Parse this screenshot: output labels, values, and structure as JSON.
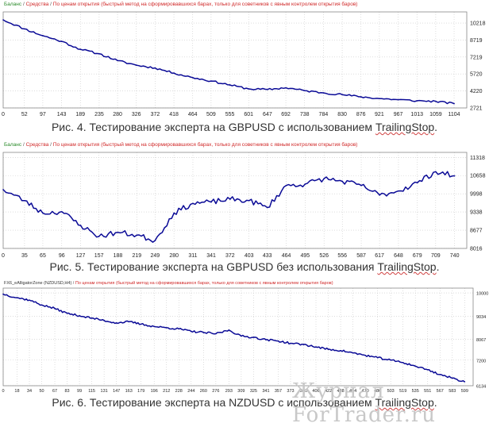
{
  "chart_data": [
    {
      "type": "line",
      "header": {
        "balance": "Баланс",
        "sep1": " / ",
        "equity": "Средства",
        "sep2": " / ",
        "mode": "По ценам открытия (быстрый метод на сформировавшихся барах, только для советников с явным контролем открытия баров)"
      },
      "x": [
        0,
        52,
        97,
        143,
        189,
        235,
        280,
        326,
        372,
        418,
        464,
        509,
        555,
        601,
        647,
        692,
        738,
        784,
        830,
        876,
        921,
        967,
        1013,
        1059,
        1104
      ],
      "xlim": [
        0,
        1135
      ],
      "ylim": [
        2721,
        11200
      ],
      "yticks": [
        2721,
        4220,
        5720,
        7219,
        8719,
        10218
      ],
      "xticks": [
        "0",
        "52",
        "97",
        "143",
        "189",
        "235",
        "280",
        "326",
        "372",
        "418",
        "464",
        "509",
        "555",
        "601",
        "647",
        "692",
        "738",
        "784",
        "830",
        "876",
        "921",
        "967",
        "1013",
        "1059",
        "1104"
      ],
      "series": [
        {
          "values": [
            10500,
            9700,
            9100,
            8600,
            7900,
            7500,
            6900,
            6500,
            6250,
            5800,
            5400,
            5100,
            4750,
            4400,
            4350,
            4500,
            4250,
            4050,
            3900,
            3700,
            3550,
            3450,
            3350,
            3300,
            3100
          ]
        }
      ],
      "caption": {
        "main": "Рис. 4. Тестирование эксперта на GBPUSD с использованием ",
        "suffix": "TrailingStop",
        "end": "."
      }
    },
    {
      "type": "line",
      "header": {
        "balance": "Баланс",
        "sep1": " / ",
        "equity": "Средства",
        "sep2": " / ",
        "mode": "По ценам открытия (быстрый метод на сформировавшихся барах, только для советников с явным контролем открытия баров)"
      },
      "x": [
        0,
        35,
        65,
        96,
        127,
        157,
        188,
        219,
        249,
        280,
        311,
        341,
        372,
        403,
        433,
        464,
        495,
        526,
        556,
        587,
        617,
        648,
        679,
        709,
        740
      ],
      "xlim": [
        0,
        760
      ],
      "ylim": [
        8016,
        11500
      ],
      "yticks": [
        8016,
        8677,
        9338,
        9998,
        10658,
        11318
      ],
      "xticks": [
        "0",
        "35",
        "65",
        "96",
        "127",
        "157",
        "188",
        "219",
        "249",
        "280",
        "311",
        "341",
        "372",
        "403",
        "433",
        "464",
        "495",
        "526",
        "556",
        "587",
        "617",
        "648",
        "679",
        "709",
        "740"
      ],
      "series": [
        {
          "values": [
            10150,
            9750,
            9300,
            9350,
            8850,
            8450,
            8600,
            8500,
            8300,
            9300,
            9650,
            9700,
            9800,
            9750,
            9500,
            10300,
            10350,
            10550,
            10450,
            10300,
            9950,
            10100,
            10400,
            10800,
            10650
          ]
        }
      ],
      "caption": {
        "main": "Рис. 5. Тестирование эксперта на GBPUSD без использования ",
        "suffix": "TrailingStop",
        "end": "."
      }
    },
    {
      "type": "line",
      "header": {
        "title": "FX6_eAlligatorZone (NZDUSD,H4)",
        "sep1": " / ",
        "mode": "По ценам открытия (быстрый метод на сформировавшихся барах, только для советников с явным контролем открытия баров)"
      },
      "x": [
        0,
        18,
        34,
        50,
        67,
        83,
        99,
        115,
        131,
        147,
        163,
        179,
        196,
        212,
        228,
        244,
        260,
        276,
        293,
        309,
        325,
        341,
        357,
        373,
        390,
        406,
        422,
        438,
        454,
        470,
        486,
        503,
        519,
        535,
        551,
        567,
        583,
        599
      ],
      "xlim": [
        0,
        610
      ],
      "ylim": [
        6134,
        10200
      ],
      "yticks": [
        6134,
        7200,
        8067,
        9034,
        10000
      ],
      "xticks": [
        "0",
        "18",
        "34",
        "50",
        "67",
        "83",
        "99",
        "115",
        "131",
        "147",
        "163",
        "179",
        "196",
        "212",
        "228",
        "244",
        "260",
        "276",
        "293",
        "309",
        "325",
        "341",
        "357",
        "373",
        "390",
        "406",
        "422",
        "438",
        "454",
        "470",
        "486",
        "503",
        "519",
        "535",
        "551",
        "567",
        "583",
        "599"
      ],
      "series": [
        {
          "values": [
            9950,
            9800,
            9700,
            9500,
            9350,
            9150,
            9050,
            8950,
            8850,
            8750,
            8800,
            8700,
            8600,
            8550,
            8500,
            8400,
            8350,
            8300,
            8450,
            8200,
            8150,
            8050,
            8000,
            7900,
            7850,
            7750,
            7650,
            7600,
            7500,
            7400,
            7300,
            7200,
            7100,
            6950,
            6800,
            6600,
            6450,
            6300
          ]
        }
      ],
      "caption": {
        "main": "Рис. 6. Тестирование эксперта на NZDUSD с использованием ",
        "suffix": "TrailingStop",
        "end": "."
      }
    }
  ],
  "watermark": "Журнал ForTrader.ru",
  "colors": {
    "line": "#0a0a96",
    "balance": "#2a8a2a",
    "equity": "#d02828",
    "grid": "#c8c8c8",
    "axis": "#000000",
    "text": "#333333"
  }
}
